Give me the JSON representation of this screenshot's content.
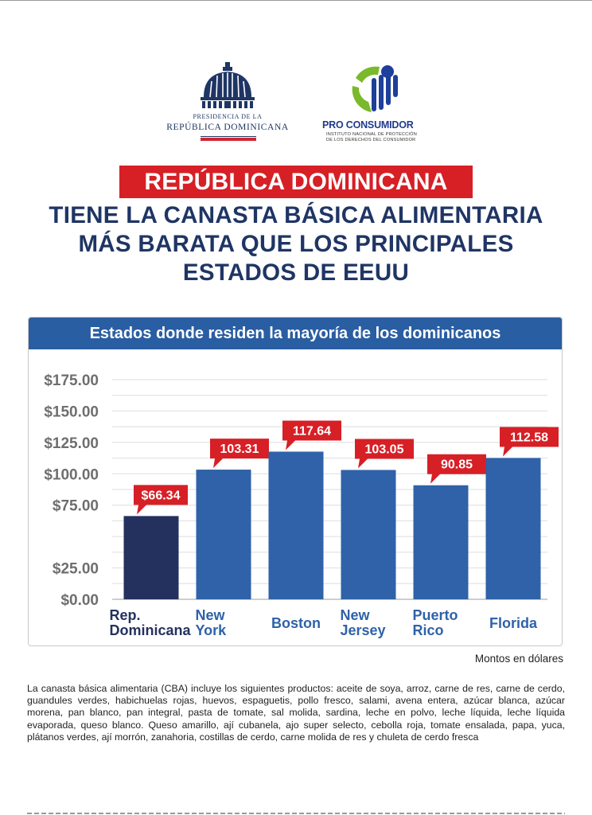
{
  "logos": {
    "presidencia": {
      "line1": "PRESIDENCIA DE LA",
      "line2": "REPÚBLICA DOMINICANA",
      "icon": "national-palace-dome"
    },
    "proconsumidor": {
      "name": "PRO CONSUMIDOR",
      "subtitle_line1": "INSTITUTO NACIONAL DE PROTECCIÓN",
      "subtitle_line2": "DE LOS DERECHOS DEL CONSUMIDOR",
      "icon": "proconsumidor-emblem"
    }
  },
  "headline": {
    "banner": "REPÚBLICA DOMINICANA",
    "line1": "TIENE LA CANASTA BÁSICA ALIMENTARIA",
    "line2": "MÁS BARATA QUE LOS PRINCIPALES",
    "line3": "ESTADOS DE EEUU"
  },
  "colors": {
    "navy": "#1f3564",
    "red": "#d71f26",
    "blue_bar": "#2f62a8",
    "dark_bar": "#24315e",
    "header_blue": "#2a5ea2"
  },
  "chart_data": {
    "type": "bar",
    "title": "Estados donde residen la mayoría de los dominicanos",
    "categories": [
      [
        "Rep.",
        "Dominicana"
      ],
      [
        "New",
        "York"
      ],
      [
        "Boston"
      ],
      [
        "New",
        "Jersey"
      ],
      [
        "Puerto",
        "Rico"
      ],
      [
        "Florida"
      ]
    ],
    "values": [
      66.34,
      103.31,
      117.64,
      103.05,
      90.85,
      112.58
    ],
    "data_labels": [
      "$66.34",
      "103.31",
      "117.64",
      "103.05",
      "90.85",
      "112.58"
    ],
    "ylim": [
      0,
      175
    ],
    "yticks": [
      0,
      25,
      75,
      100,
      125,
      150,
      175
    ],
    "ytick_labels": [
      "$0.00",
      "$25.00",
      "$75.00",
      "$100.00",
      "$125.00",
      "$150.00",
      "$175.00"
    ],
    "grid": true,
    "legend": "none"
  },
  "note": "Montos en dólares",
  "footnote": "La canasta básica alimentaria (CBA) incluye los siguientes productos: aceite de soya, arroz, carne de res, carne de cerdo, guandules verdes, habichuelas rojas, huevos, espaguetis, pollo fresco, salami, avena entera, azúcar blanca, azúcar morena, pan blanco, pan integral, pasta de tomate, sal molida, sardina, leche en polvo, leche líquida, leche líquida evaporada, queso blanco. Queso amarillo, ají cubanela, ajo super selecto, cebolla roja, tomate ensalada, papa, yuca, plátanos verdes, ají morrón, zanahoria, costillas de cerdo, carne molida de res y chuleta de cerdo fresca"
}
